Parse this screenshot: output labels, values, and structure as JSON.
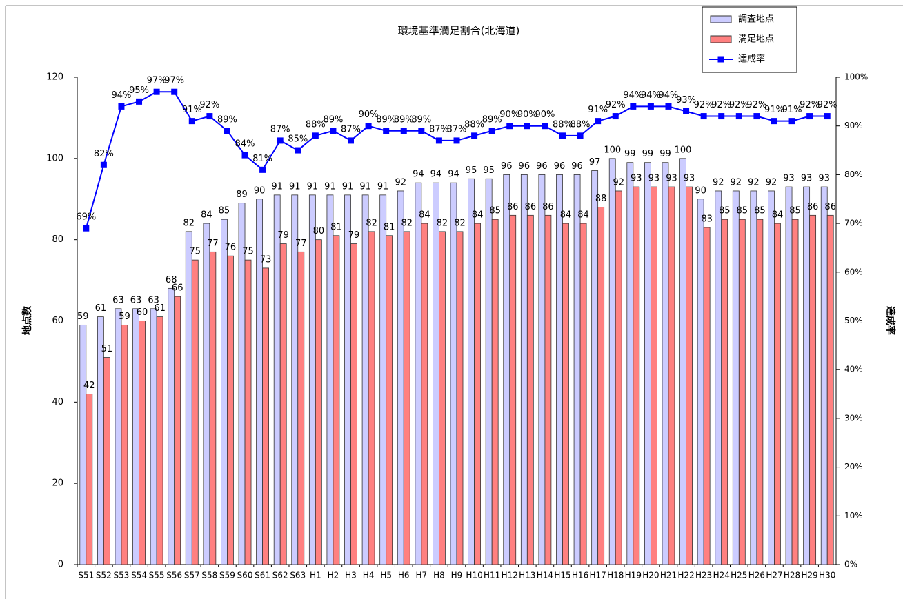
{
  "chart_data": {
    "type": "bar-line",
    "title": "環境基準満足割合(北海道)",
    "ylabel": "地点数",
    "y2label": "達成率",
    "categories": [
      "S51",
      "S52",
      "S53",
      "S54",
      "S55",
      "S56",
      "S57",
      "S58",
      "S59",
      "S60",
      "S61",
      "S62",
      "S63",
      "H1",
      "H2",
      "H3",
      "H4",
      "H5",
      "H6",
      "H7",
      "H8",
      "H9",
      "H10",
      "H11",
      "H12",
      "H13",
      "H14",
      "H15",
      "H16",
      "H17",
      "H18",
      "H19",
      "H20",
      "H21",
      "H22",
      "H23",
      "H24",
      "H25",
      "H26",
      "H27",
      "H28",
      "H29",
      "H30"
    ],
    "series": [
      {
        "name": "調査地点",
        "type": "bar",
        "color": "#ccccff",
        "values": [
          59,
          61,
          63,
          63,
          63,
          68,
          82,
          84,
          85,
          89,
          90,
          91,
          91,
          91,
          91,
          91,
          91,
          91,
          92,
          94,
          94,
          94,
          95,
          95,
          96,
          96,
          96,
          96,
          96,
          97,
          100,
          99,
          99,
          99,
          100,
          90,
          92,
          92,
          92,
          92,
          93,
          93,
          93
        ]
      },
      {
        "name": "満足地点",
        "type": "bar",
        "color": "#ff8080",
        "values": [
          42,
          51,
          59,
          60,
          61,
          66,
          75,
          77,
          76,
          75,
          73,
          79,
          77,
          80,
          81,
          79,
          82,
          81,
          82,
          84,
          82,
          82,
          84,
          85,
          86,
          86,
          86,
          84,
          84,
          88,
          92,
          93,
          93,
          93,
          93,
          83,
          85,
          85,
          85,
          84,
          85,
          86,
          86
        ]
      },
      {
        "name": "達成率",
        "type": "line",
        "axis": "y2",
        "color": "#0000ff",
        "values": [
          69,
          82,
          94,
          95,
          97,
          97,
          91,
          92,
          89,
          84,
          81,
          87,
          85,
          88,
          89,
          87,
          90,
          89,
          89,
          89,
          87,
          87,
          88,
          89,
          90,
          90,
          90,
          88,
          88,
          91,
          92,
          94,
          94,
          94,
          93,
          92,
          92,
          92,
          92,
          91,
          91,
          92,
          92
        ],
        "value_labels": [
          "69%",
          "82%",
          "94%",
          "95%",
          "97%",
          "97%",
          "91%",
          "92%",
          "89%",
          "84%",
          "81%",
          "87%",
          "85%",
          "88%",
          "89%",
          "87%",
          "90%",
          "89%",
          "89%",
          "89%",
          "87%",
          "87%",
          "88%",
          "89%",
          "90%",
          "90%",
          "90%",
          "88%",
          "88%",
          "91%",
          "92%",
          "94%",
          "94%",
          "94%",
          "93%",
          "92%",
          "92%",
          "92%",
          "92%",
          "91%",
          "91%",
          "92%",
          "92%"
        ]
      }
    ],
    "ylim": [
      0,
      120
    ],
    "yticks": [
      0,
      20,
      40,
      60,
      80,
      100,
      120
    ],
    "y2lim": [
      0,
      100
    ],
    "y2ticks": [
      {
        "value": 0,
        "label": "0%"
      },
      {
        "value": 10,
        "label": "10%"
      },
      {
        "value": 20,
        "label": "20%"
      },
      {
        "value": 30,
        "label": "30%"
      },
      {
        "value": 40,
        "label": "40%"
      },
      {
        "value": 50,
        "label": "50%"
      },
      {
        "value": 60,
        "label": "60%"
      },
      {
        "value": 70,
        "label": "70%"
      },
      {
        "value": 80,
        "label": "80%"
      },
      {
        "value": 90,
        "label": "90%"
      },
      {
        "value": 100,
        "label": "100%"
      }
    ],
    "grid": false,
    "legend": "top-right"
  }
}
